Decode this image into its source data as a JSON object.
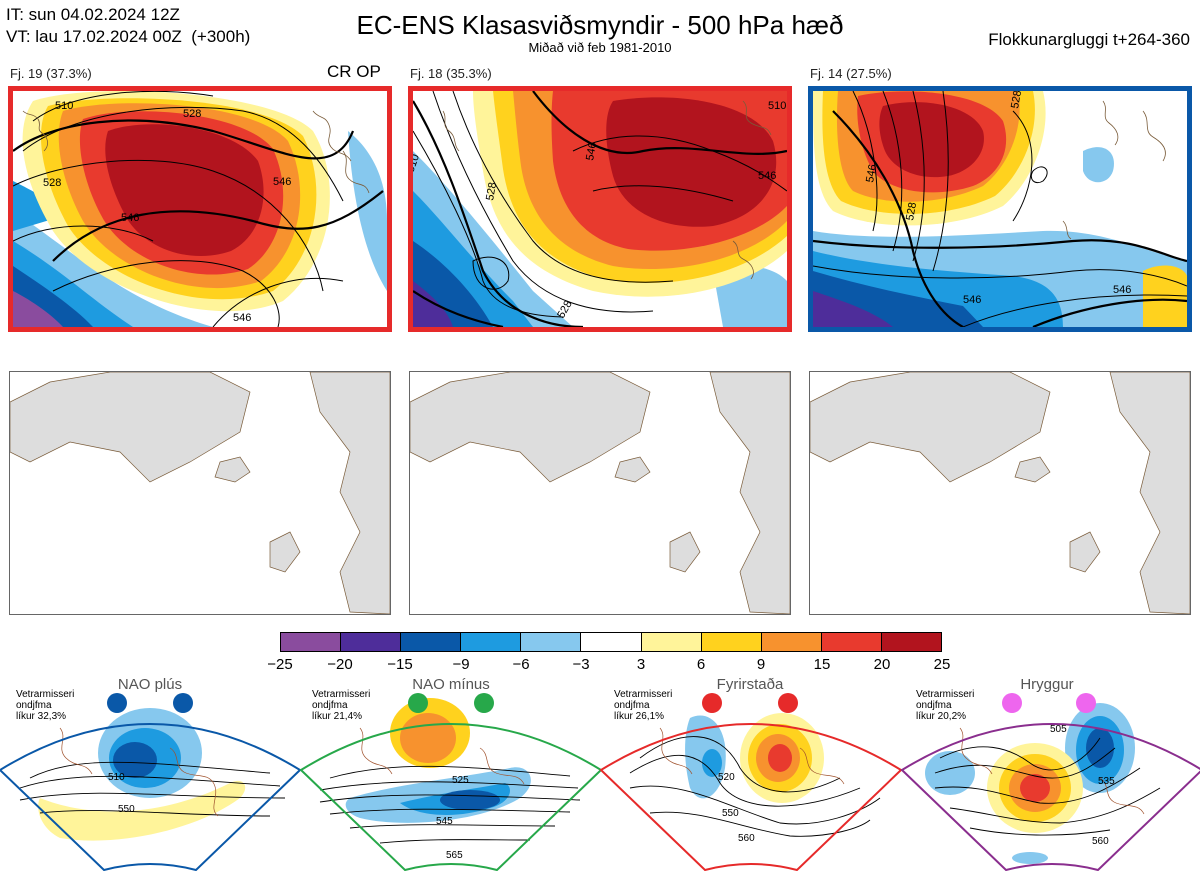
{
  "header": {
    "it_line": "IT: sun 04.02.2024 12Z",
    "vt_line": "VT: lau 17.02.2024 00Z  (+300h)",
    "title": "EC-ENS Klasasviðsmyndir - 500 hPa hæð",
    "subtitle": "Miðað við feb 1981-2010",
    "window": "Flokkunargluggi t+264-360"
  },
  "panels": [
    {
      "label": "Fj. 19 (37.3%)",
      "tag": "CR OP",
      "frame_color": "#e62a2a",
      "contour_labels": [
        "510",
        "528",
        "546",
        "528",
        "546",
        "546"
      ]
    },
    {
      "label": "Fj. 18 (35.3%)",
      "tag": "",
      "frame_color": "#e62a2a",
      "contour_labels": [
        "510",
        "528",
        "546",
        "546",
        "528",
        "510"
      ]
    },
    {
      "label": "Fj. 14 (27.5%)",
      "tag": "",
      "frame_color": "#0a58a8",
      "contour_labels": [
        "528",
        "528",
        "546",
        "546",
        "546"
      ]
    }
  ],
  "colorbar": {
    "colors": [
      "#8a4c9e",
      "#4e2d9a",
      "#0a58a8",
      "#1e9be0",
      "#86c8ee",
      "#ffffff",
      "#fff49a",
      "#ffd21e",
      "#f7922e",
      "#e83a2e",
      "#b2141e"
    ],
    "ticks": [
      "−25",
      "−20",
      "−15",
      "−9",
      "−6",
      "−3",
      "3",
      "6",
      "9",
      "15",
      "20",
      "25"
    ]
  },
  "regimes": [
    {
      "name": "NAO plús",
      "note": "Vetrarmisseri\nondjfma\nlíkur 32,3%",
      "color": "#0a58a8",
      "labels": [
        "510",
        "550"
      ]
    },
    {
      "name": "NAO mínus",
      "note": "Vetrarmisseri\nondjfma\nlíkur 21,4%",
      "color": "#27a84a",
      "labels": [
        "525",
        "545",
        "565"
      ]
    },
    {
      "name": "Fyrirstaða",
      "note": "Vetrarmisseri\nondjfma\nlíkur 26,1%",
      "color": "#e62a2a",
      "labels": [
        "520",
        "550",
        "560"
      ]
    },
    {
      "name": "Hryggur",
      "note": "Vetrarmisseri\nondjfma\nlíkur 20,2%",
      "color": "#8a2e8e",
      "labels": [
        "505",
        "535",
        "560"
      ]
    }
  ]
}
